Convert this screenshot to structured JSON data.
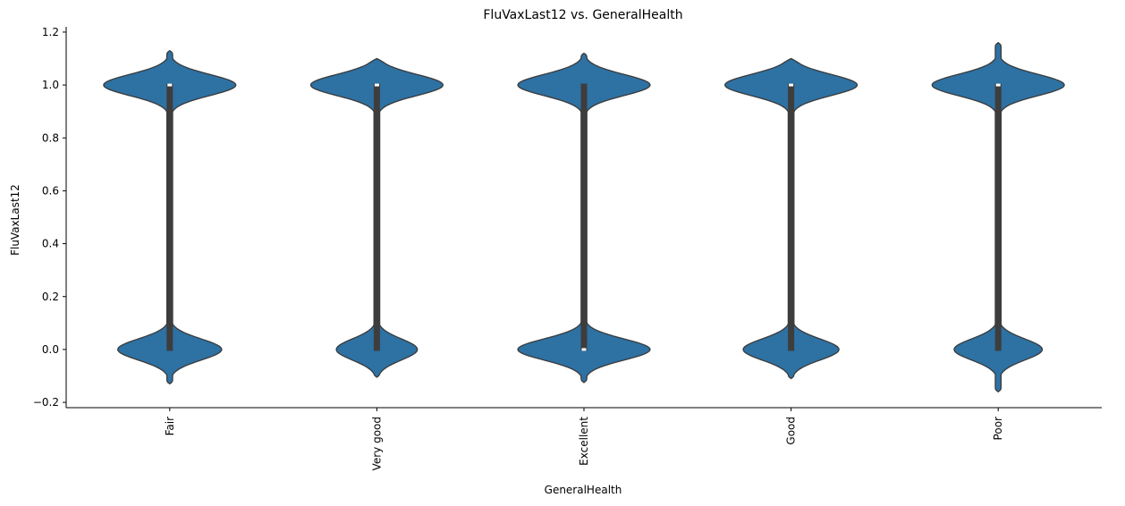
{
  "chart_data": {
    "type": "violin",
    "title": "FluVaxLast12 vs. GeneralHealth",
    "xlabel": "GeneralHealth",
    "ylabel": "FluVaxLast12",
    "categories": [
      "Fair",
      "Very good",
      "Excellent",
      "Good",
      "Poor"
    ],
    "ylim": [
      -0.22,
      1.22
    ],
    "yticks": [
      -0.2,
      0.0,
      0.2,
      0.4,
      0.6,
      0.8,
      1.0,
      1.2
    ],
    "ytick_labels": [
      "−0.2",
      "0.0",
      "0.2",
      "0.4",
      "0.6",
      "0.8",
      "1.0",
      "1.2"
    ],
    "grid": false,
    "color": "#2e71a3",
    "violins": [
      {
        "category": "Fair",
        "proportion_one": 0.56,
        "q1": 0,
        "median": 1,
        "q3": 1,
        "y_min": -0.13,
        "y_max": 1.13
      },
      {
        "category": "Very good",
        "proportion_one": 0.62,
        "q1": 0,
        "median": 1,
        "q3": 1,
        "y_min": -0.105,
        "y_max": 1.1
      },
      {
        "category": "Excellent",
        "proportion_one": 0.5,
        "q1": 0,
        "median": 0,
        "q3": 1,
        "y_min": -0.125,
        "y_max": 1.12
      },
      {
        "category": "Good",
        "proportion_one": 0.58,
        "q1": 0,
        "median": 1,
        "q3": 1,
        "y_min": -0.11,
        "y_max": 1.1
      },
      {
        "category": "Poor",
        "proportion_one": 0.6,
        "q1": 0,
        "median": 1,
        "q3": 1,
        "y_min": -0.16,
        "y_max": 1.16
      }
    ]
  }
}
